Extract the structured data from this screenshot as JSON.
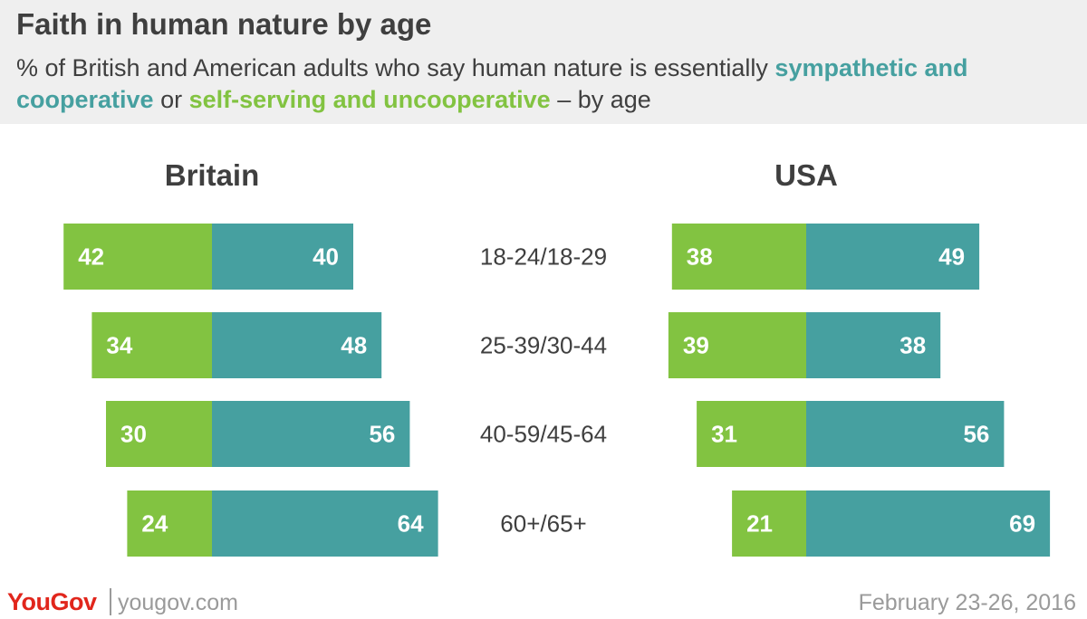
{
  "header": {
    "title": "Faith in human nature by age",
    "subtitle_pre": "% of British and American adults who say human nature is essentially ",
    "subtitle_hl1": "sympathetic and cooperative",
    "subtitle_mid": "  or ",
    "subtitle_hl2": "self-serving and uncooperative",
    "subtitle_post": " – by age"
  },
  "colors": {
    "cooperative": "#46a0a0",
    "self_serving": "#82c341",
    "text_dark": "#3f3f3f",
    "muted": "#9a9a9a",
    "brand_red": "#e1261c"
  },
  "chart_data": {
    "type": "bar",
    "orientation": "horizontal-diverging",
    "categories": [
      "18-24/18-29",
      "25-39/30-44",
      "40-59/45-64",
      "60+/65+"
    ],
    "panels": [
      {
        "title": "Britain",
        "series": [
          {
            "key": "self_serving",
            "values": [
              42,
              34,
              30,
              24
            ]
          },
          {
            "key": "cooperative",
            "values": [
              40,
              48,
              56,
              64
            ]
          }
        ]
      },
      {
        "title": "USA",
        "series": [
          {
            "key": "self_serving",
            "values": [
              38,
              39,
              31,
              21
            ]
          },
          {
            "key": "cooperative",
            "values": [
              49,
              38,
              56,
              69
            ]
          }
        ]
      }
    ]
  },
  "footer": {
    "brand": "YouGov",
    "site": "yougov.com",
    "date": "February 23-26, 2016"
  }
}
